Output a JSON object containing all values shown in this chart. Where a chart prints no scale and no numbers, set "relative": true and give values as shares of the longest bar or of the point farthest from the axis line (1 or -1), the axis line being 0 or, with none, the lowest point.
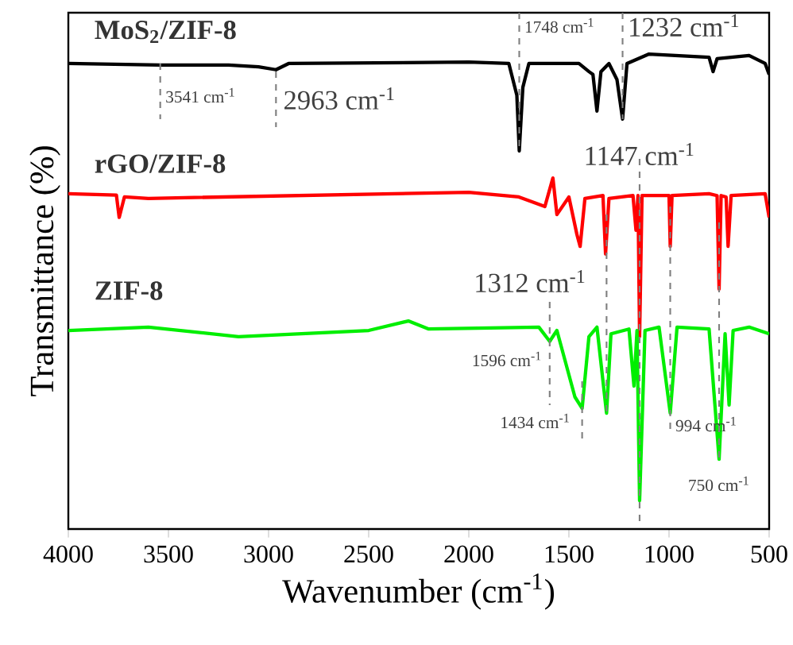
{
  "chart_data": {
    "type": "line",
    "xlabel": "Wavenumber (cm$^{-1}$)",
    "ylabel": "Transmittance (%)",
    "relative": true,
    "xlim": [
      4000,
      500
    ],
    "xticks": [
      4000,
      3500,
      3000,
      2500,
      2000,
      1500,
      1000,
      500
    ],
    "series": [
      {
        "name": "**MoS$_{2}$/ZIF-8**",
        "color": "#000000",
        "x": [
          4000,
          3541,
          3200,
          3050,
          2963,
          2900,
          2000,
          1800,
          1760,
          1748,
          1730,
          1700,
          1450,
          1400,
          1380,
          1360,
          1340,
          1300,
          1260,
          1232,
          1210,
          1100,
          800,
          780,
          760,
          600,
          520,
          500
        ],
        "values": [
          0.98,
          0.977,
          0.977,
          0.973,
          0.967,
          0.98,
          0.983,
          0.98,
          0.913,
          0.796,
          0.93,
          0.98,
          0.98,
          0.963,
          0.957,
          0.88,
          0.963,
          0.98,
          0.946,
          0.863,
          0.98,
          1.0,
          0.993,
          0.963,
          0.99,
          0.997,
          0.98,
          0.957
        ]
      },
      {
        "name": "**rGO/ZIF-8**",
        "color": "#ff0000",
        "x": [
          4000,
          3760,
          3746,
          3720,
          3600,
          2000,
          1750,
          1620,
          1580,
          1560,
          1500,
          1460,
          1444,
          1420,
          1330,
          1317,
          1300,
          1180,
          1165,
          1155,
          1147,
          1135,
          1000,
          994,
          985,
          800,
          760,
          750,
          740,
          715,
          705,
          690,
          520,
          500
        ],
        "values": [
          0.706,
          0.703,
          0.656,
          0.699,
          0.696,
          0.709,
          0.699,
          0.679,
          0.739,
          0.662,
          0.699,
          0.62,
          0.595,
          0.696,
          0.702,
          0.579,
          0.696,
          0.702,
          0.629,
          0.702,
          0.405,
          0.702,
          0.702,
          0.595,
          0.702,
          0.706,
          0.702,
          0.505,
          0.702,
          0.699,
          0.595,
          0.702,
          0.706,
          0.656
        ]
      },
      {
        "name": "**ZIF-8**",
        "color": "#00ee00",
        "x": [
          4000,
          3600,
          3150,
          2500,
          2302,
          2200,
          1650,
          1596,
          1560,
          1470,
          1434,
          1400,
          1360,
          1312,
          1290,
          1200,
          1175,
          1160,
          1147,
          1120,
          1050,
          994,
          960,
          800,
          750,
          720,
          700,
          680,
          600,
          500
        ],
        "values": [
          0.418,
          0.425,
          0.405,
          0.418,
          0.438,
          0.421,
          0.425,
          0.395,
          0.418,
          0.278,
          0.254,
          0.405,
          0.425,
          0.244,
          0.411,
          0.421,
          0.301,
          0.418,
          0.06,
          0.418,
          0.425,
          0.244,
          0.425,
          0.421,
          0.147,
          0.411,
          0.261,
          0.418,
          0.425,
          0.411
        ]
      }
    ],
    "ref_lines": [
      {
        "axis": "x",
        "value": 3541,
        "label": "3541 cm$^{-1}$",
        "color": "#808080",
        "line_style": "dashed"
      },
      {
        "axis": "x",
        "value": 2963,
        "label": "2963 cm$^{-1}$",
        "color": "#808080",
        "line_style": "dashed"
      },
      {
        "axis": "x",
        "value": 1748,
        "label": "1748 cm$^{-1}$",
        "color": "#808080",
        "line_style": "dashed"
      },
      {
        "axis": "x",
        "value": 1232,
        "label": "1232 cm$^{-1}$",
        "color": "#808080",
        "line_style": "dashed"
      },
      {
        "axis": "x",
        "value": 1147,
        "label": "1147 cm$^{-1}$",
        "color": "#808080",
        "line_style": "dashed"
      },
      {
        "axis": "x",
        "value": 1312,
        "label": "1312 cm$^{-1}$",
        "color": "#808080",
        "line_style": "dashed"
      },
      {
        "axis": "x",
        "value": 1596,
        "label": "1596 cm$^{-1}$",
        "color": "#808080",
        "line_style": "dashed"
      },
      {
        "axis": "x",
        "value": 1434,
        "label": "1434 cm$^{-1}$",
        "color": "#808080",
        "line_style": "dashed"
      },
      {
        "axis": "x",
        "value": 994,
        "label": "994 cm$^{-1}$",
        "color": "#808080",
        "line_style": "dashed"
      },
      {
        "axis": "x",
        "value": 750,
        "label": "750 cm$^{-1}$",
        "color": "#808080",
        "line_style": "dashed"
      }
    ]
  }
}
